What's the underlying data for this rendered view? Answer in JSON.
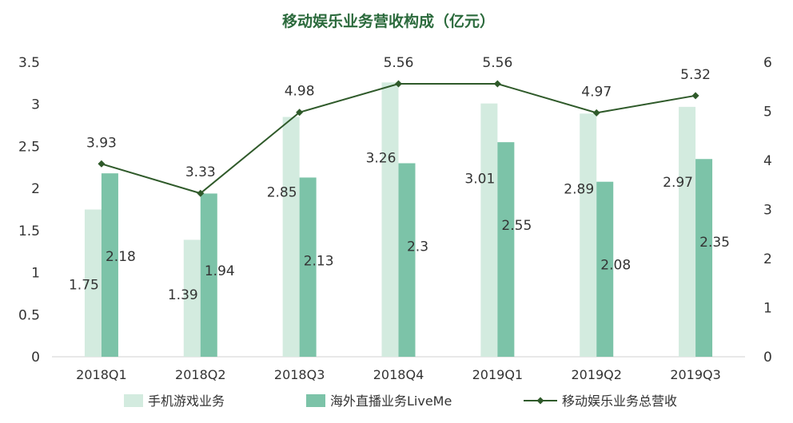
{
  "chart_data": {
    "type": "bar",
    "title": "移动娱乐业务营收构成（亿元）",
    "categories": [
      "2018Q1",
      "2018Q2",
      "2018Q3",
      "2018Q4",
      "2019Q1",
      "2019Q2",
      "2019Q3"
    ],
    "series": [
      {
        "name": "手机游戏业务",
        "type": "bar",
        "axis": "left",
        "color": "#d3ebdf",
        "values": [
          1.75,
          1.39,
          2.85,
          3.26,
          3.01,
          2.89,
          2.97
        ]
      },
      {
        "name": "海外直播业务LiveMe",
        "type": "bar",
        "axis": "left",
        "color": "#7cc3a8",
        "values": [
          2.18,
          1.94,
          2.13,
          2.3,
          2.55,
          2.08,
          2.35
        ]
      },
      {
        "name": "移动娱乐业务总营收",
        "type": "line",
        "axis": "right",
        "color": "#2f5a2a",
        "values": [
          3.93,
          3.33,
          4.98,
          5.56,
          5.56,
          4.97,
          5.32
        ]
      }
    ],
    "y_left": {
      "min": 0,
      "max": 3.5,
      "ticks": [
        "0",
        "0.5",
        "1",
        "1.5",
        "2",
        "2.5",
        "3",
        "3.5"
      ]
    },
    "y_right": {
      "min": 0,
      "max": 6,
      "ticks": [
        "0",
        "1",
        "2",
        "3",
        "4",
        "5",
        "6"
      ]
    },
    "legend_position": "bottom",
    "grid": false
  }
}
